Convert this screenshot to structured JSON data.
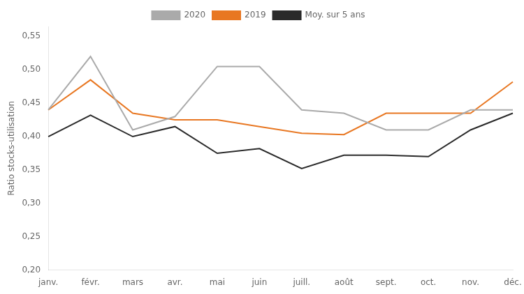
{
  "chart_data": {
    "type": "line",
    "categories": [
      "janv.",
      "févr.",
      "mars",
      "avr.",
      "mai",
      "juin",
      "juill.",
      "août",
      "sept.",
      "oct.",
      "nov.",
      "déc."
    ],
    "series": [
      {
        "name": "2020",
        "color": "#aaaaaa",
        "values": [
          0.44,
          0.52,
          0.41,
          0.43,
          0.505,
          0.505,
          0.44,
          0.435,
          0.41,
          0.41,
          0.44,
          0.44
        ]
      },
      {
        "name": "2019",
        "color": "#e87722",
        "values": [
          0.44,
          0.485,
          0.435,
          0.425,
          0.425,
          0.415,
          0.405,
          0.403,
          0.435,
          0.435,
          0.435,
          0.482
        ]
      },
      {
        "name": "Moy. sur 5 ans",
        "color": "#2a2a2a",
        "values": [
          0.4,
          0.432,
          0.4,
          0.415,
          0.375,
          0.382,
          0.352,
          0.372,
          0.372,
          0.37,
          0.41,
          0.435
        ]
      }
    ],
    "y_label": "Ratio stocks-utilisation",
    "ylim": [
      0.2,
      0.565
    ],
    "yticks": [
      {
        "value": 0.2,
        "label": "0,20"
      },
      {
        "value": 0.25,
        "label": "0,25"
      },
      {
        "value": 0.3,
        "label": "0,30"
      },
      {
        "value": 0.35,
        "label": "0,35"
      },
      {
        "value": 0.4,
        "label": "0,40"
      },
      {
        "value": 0.45,
        "label": "0,45"
      },
      {
        "value": 0.5,
        "label": "0,50"
      },
      {
        "value": 0.55,
        "label": "0,55"
      }
    ],
    "grid": false,
    "legend": "top"
  }
}
